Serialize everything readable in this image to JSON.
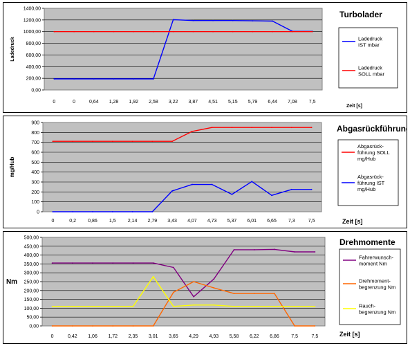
{
  "colors": {
    "plot_bg": "#c0c0c0",
    "grid": "#000000",
    "red": "#ff0000",
    "blue": "#0000ff",
    "purple": "#800080",
    "orange": "#ff6600",
    "yellow": "#ffff00"
  },
  "chart_data": [
    {
      "type": "line",
      "title": "Turbolader",
      "ylabel": "Ladedruck",
      "xlabel": "Zeit [s]",
      "ylim": [
        0,
        1400
      ],
      "yticks": [
        "0,00",
        "200,00",
        "400,00",
        "600,00",
        "800,00",
        "1000,00",
        "1200,00",
        "1400,00"
      ],
      "categories": [
        "0",
        "0",
        "0,64",
        "1,28",
        "1,92",
        "2,58",
        "3,22",
        "3,87",
        "4,51",
        "5,15",
        "5,79",
        "6,44",
        "7,08",
        "7,5"
      ],
      "legend_position": "right",
      "grid": true,
      "series": [
        {
          "name": "Ladedruck IST mbar",
          "legend_lines": [
            "Ladedruck",
            "IST  mbar"
          ],
          "color": "blue",
          "values": [
            190,
            190,
            190,
            190,
            190,
            190,
            1205,
            1190,
            1190,
            1190,
            1185,
            1180,
            1005,
            1005
          ]
        },
        {
          "name": "Ladedruck SOLL mbar",
          "legend_lines": [
            "Ladedruck",
            "SOLL  mbar"
          ],
          "color": "red",
          "values": [
            1000,
            1000,
            1000,
            1000,
            1000,
            1000,
            1000,
            1000,
            1000,
            1000,
            1000,
            1000,
            1000,
            1000
          ]
        }
      ]
    },
    {
      "type": "line",
      "title": "Abgasrückführung",
      "ylabel": "mg/Hub",
      "xlabel": "Zeit [s]",
      "ylim": [
        0,
        900
      ],
      "yticks": [
        "0",
        "100",
        "200",
        "300",
        "400",
        "500",
        "600",
        "700",
        "800",
        "900"
      ],
      "categories": [
        "0",
        "0,2",
        "0,86",
        "1,5",
        "2,14",
        "2,79",
        "3,43",
        "4,07",
        "4,73",
        "5,37",
        "6,01",
        "6,65",
        "7,3",
        "7,5"
      ],
      "legend_position": "right",
      "grid": true,
      "series": [
        {
          "name": "Abgasrückführung SOLL mg/Hub",
          "legend_lines": [
            "Abgasrück-",
            "führung SOLL",
            "mg/Hub"
          ],
          "color": "red",
          "values": [
            710,
            710,
            710,
            710,
            710,
            710,
            710,
            810,
            850,
            850,
            850,
            850,
            850,
            850
          ]
        },
        {
          "name": "Abgasrückführung IST mg/Hub",
          "legend_lines": [
            "Abgasrück-",
            "führung IST",
            "mg/Hub"
          ],
          "color": "blue",
          "values": [
            0,
            0,
            0,
            0,
            0,
            0,
            210,
            275,
            275,
            175,
            305,
            165,
            225,
            225
          ]
        }
      ]
    },
    {
      "type": "line",
      "title": "Drehmomente",
      "ylabel": "Nm",
      "xlabel": "Zeit [s]",
      "ylim": [
        0,
        500
      ],
      "yticks": [
        "0,00",
        "50,00",
        "100,00",
        "150,00",
        "200,00",
        "250,00",
        "300,00",
        "350,00",
        "400,00",
        "450,00",
        "500,00"
      ],
      "categories": [
        "0",
        "0,42",
        "1,06",
        "1,72",
        "2,35",
        "3,01",
        "3,65",
        "4,29",
        "4,93",
        "5,58",
        "6,22",
        "6,86",
        "7,5",
        "7,5"
      ],
      "legend_position": "right",
      "grid": true,
      "series": [
        {
          "name": "Fahrerwunschmoment Nm",
          "legend_lines": [
            "Fahrerwunsch-",
            "moment Nm"
          ],
          "color": "purple",
          "values": [
            355,
            355,
            355,
            355,
            355,
            355,
            330,
            165,
            265,
            430,
            430,
            432,
            418,
            418
          ]
        },
        {
          "name": "Drehmomentbegrenzung Nm",
          "legend_lines": [
            "Drehmoment-",
            "begrenzung Nm"
          ],
          "color": "orange",
          "values": [
            0,
            0,
            0,
            0,
            0,
            0,
            190,
            250,
            215,
            183,
            183,
            183,
            0,
            0
          ]
        },
        {
          "name": "Rauchbegrenzung Nm",
          "legend_lines": [
            "Rauch-",
            "begrenzung Nm"
          ],
          "color": "yellow",
          "values": [
            110,
            110,
            110,
            110,
            110,
            278,
            110,
            118,
            118,
            110,
            110,
            110,
            110,
            110
          ]
        }
      ]
    }
  ]
}
